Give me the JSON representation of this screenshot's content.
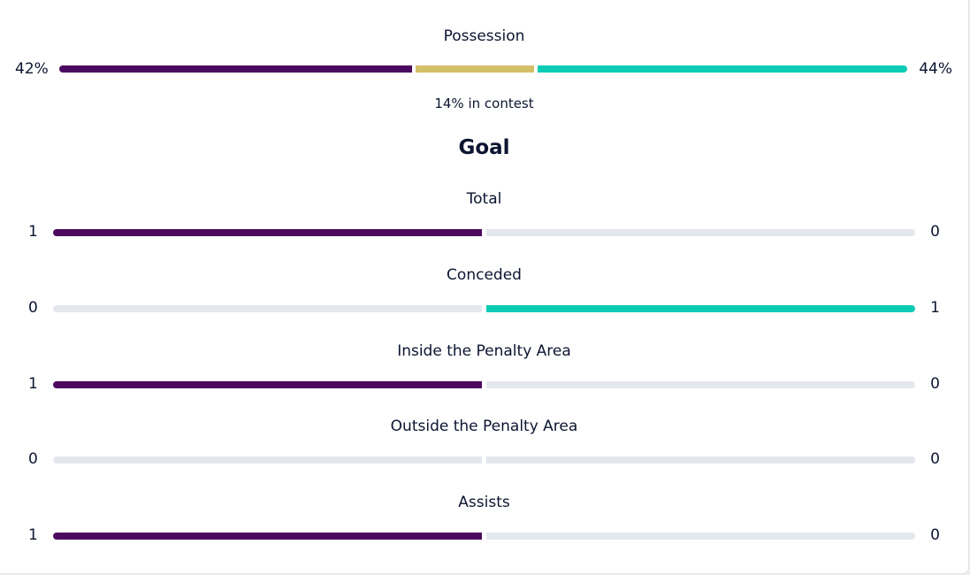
{
  "possession": {
    "label": "Possession",
    "home_value": "42%",
    "away_value": "44%",
    "contest_text": "14% in contest",
    "home_pct": 42,
    "contest_pct": 14,
    "away_pct": 44
  },
  "section_title": "Goal",
  "stats": [
    {
      "label": "Total",
      "home": "1",
      "away": "0",
      "home_fill": 1,
      "away_fill": 0
    },
    {
      "label": "Conceded",
      "home": "0",
      "away": "1",
      "home_fill": 0,
      "away_fill": 1
    },
    {
      "label": "Inside the Penalty Area",
      "home": "1",
      "away": "0",
      "home_fill": 1,
      "away_fill": 0
    },
    {
      "label": "Outside the Penalty Area",
      "home": "0",
      "away": "0",
      "home_fill": 0,
      "away_fill": 0
    },
    {
      "label": "Assists",
      "home": "1",
      "away": "0",
      "home_fill": 1,
      "away_fill": 0
    }
  ],
  "colors": {
    "home": "#4b0a5f",
    "away": "#0ccbb4",
    "contest": "#d4c068",
    "empty": "#e4e7ee"
  }
}
